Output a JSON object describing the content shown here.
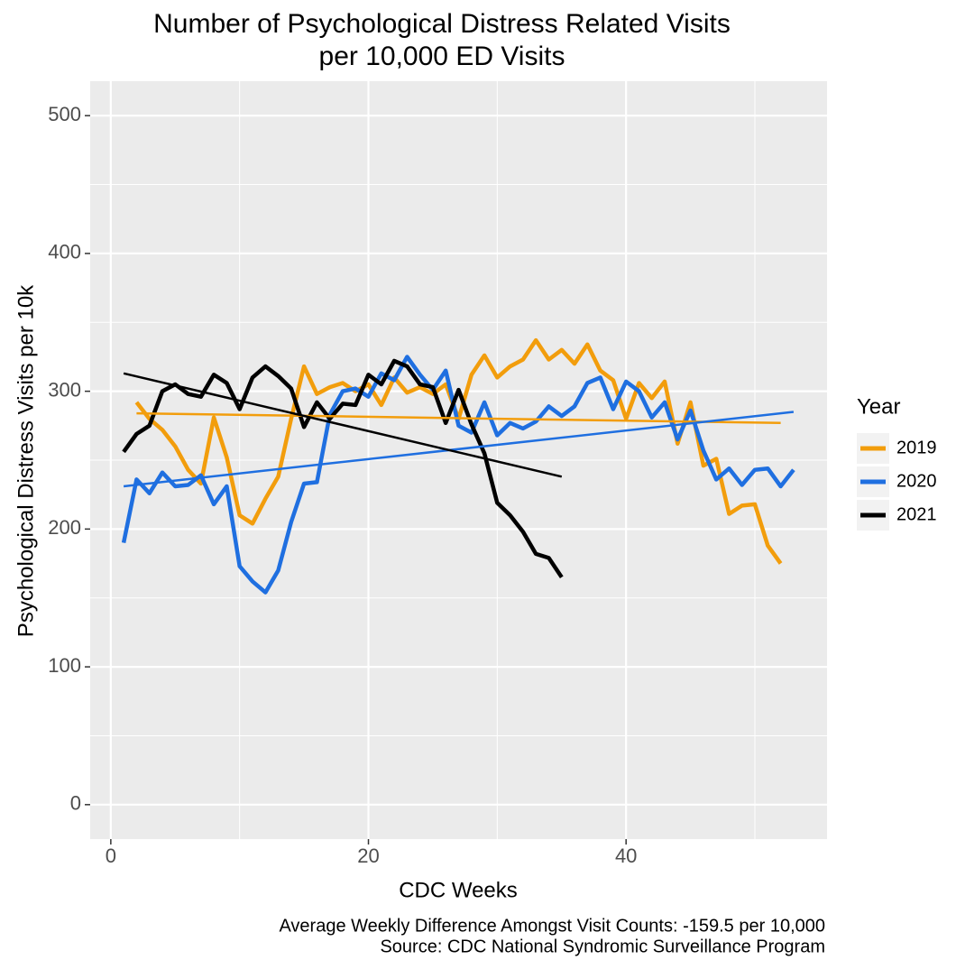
{
  "chart_data": {
    "type": "line",
    "title": [
      "Number of Psychological Distress Related Visits",
      "per 10,000 ED Visits"
    ],
    "x_label": "CDC Weeks",
    "y_label": "Psychological Distress Visits per 10k",
    "caption": [
      "Average Weekly Difference Amongst Visit Counts: -159.5 per 10,000",
      "Source: CDC National Syndromic Surveillance Program"
    ],
    "legend_title": "Year",
    "legend_position": "right",
    "grid": true,
    "xlim": [
      -1.6,
      55.6
    ],
    "xticks": [
      0,
      20,
      40
    ],
    "xminor": [
      10,
      30,
      50
    ],
    "ylim": [
      -25,
      525
    ],
    "yticks": [
      0,
      100,
      200,
      300,
      400,
      500
    ],
    "yminor": [
      50,
      150,
      250,
      350,
      450
    ],
    "series": [
      {
        "name": "2019",
        "color": "#f29d0c",
        "x": [
          2,
          3,
          4,
          5,
          6,
          7,
          8,
          9,
          10,
          11,
          12,
          13,
          14,
          15,
          16,
          17,
          18,
          19,
          20,
          21,
          22,
          23,
          24,
          25,
          26,
          27,
          28,
          29,
          30,
          31,
          32,
          33,
          34,
          35,
          36,
          37,
          38,
          39,
          40,
          41,
          42,
          43,
          44,
          45,
          46,
          47,
          48,
          49,
          50,
          51,
          52
        ],
        "values": [
          292,
          280,
          272,
          260,
          243,
          233,
          281,
          252,
          210,
          204,
          222,
          238,
          280,
          318,
          298,
          303,
          306,
          300,
          305,
          290,
          310,
          299,
          303,
          298,
          305,
          280,
          312,
          326,
          310,
          318,
          323,
          337,
          323,
          330,
          320,
          334,
          315,
          308,
          280,
          306,
          295,
          307,
          262,
          292,
          246,
          251,
          211,
          217,
          218,
          188,
          175
        ],
        "trend_x": [
          2,
          52
        ],
        "trend": [
          284,
          277
        ]
      },
      {
        "name": "2020",
        "color": "#1f6fe0",
        "x": [
          1,
          2,
          3,
          4,
          5,
          6,
          7,
          8,
          9,
          10,
          11,
          12,
          13,
          14,
          15,
          16,
          17,
          18,
          19,
          20,
          21,
          22,
          23,
          24,
          25,
          26,
          27,
          28,
          29,
          30,
          31,
          32,
          33,
          34,
          35,
          36,
          37,
          38,
          39,
          40,
          41,
          42,
          43,
          44,
          45,
          46,
          47,
          48,
          49,
          50,
          51,
          52,
          53
        ],
        "values": [
          190,
          236,
          226,
          241,
          231,
          232,
          239,
          218,
          231,
          173,
          162,
          154,
          170,
          205,
          233,
          234,
          283,
          300,
          302,
          296,
          313,
          308,
          325,
          312,
          301,
          315,
          275,
          270,
          292,
          268,
          277,
          273,
          278,
          289,
          282,
          289,
          306,
          310,
          287,
          307,
          300,
          281,
          292,
          265,
          286,
          257,
          236,
          244,
          232,
          243,
          244,
          231,
          243
        ],
        "trend_x": [
          1,
          53
        ],
        "trend": [
          231,
          285
        ]
      },
      {
        "name": "2021",
        "color": "#000000",
        "x": [
          1,
          2,
          3,
          4,
          5,
          6,
          7,
          8,
          9,
          10,
          11,
          12,
          13,
          14,
          15,
          16,
          17,
          18,
          19,
          20,
          21,
          22,
          23,
          24,
          25,
          26,
          27,
          28,
          29,
          30,
          31,
          32,
          33,
          34,
          35
        ],
        "values": [
          256,
          269,
          275,
          300,
          305,
          298,
          296,
          312,
          306,
          287,
          310,
          318,
          311,
          302,
          274,
          292,
          280,
          291,
          290,
          312,
          305,
          322,
          318,
          305,
          303,
          277,
          301,
          276,
          255,
          219,
          210,
          198,
          182,
          179,
          165
        ],
        "trend_x": [
          1,
          35
        ],
        "trend": [
          313,
          238
        ]
      }
    ]
  }
}
